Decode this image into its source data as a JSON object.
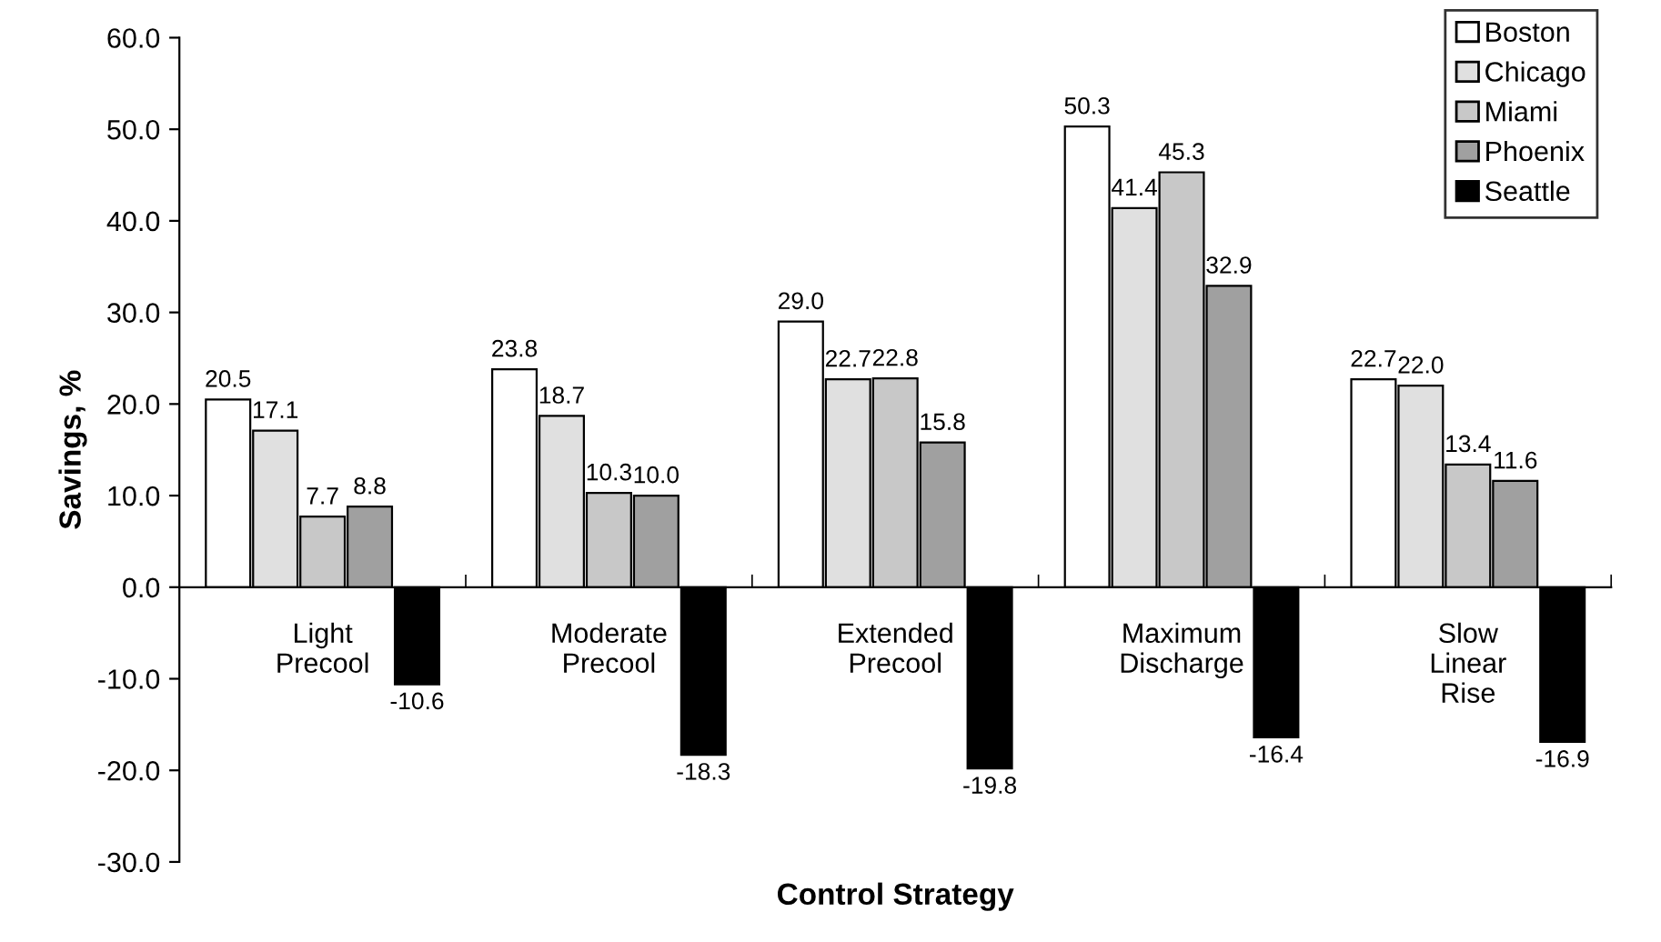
{
  "chart_data": {
    "type": "bar",
    "xlabel": "Control Strategy",
    "ylabel": "Savings, %",
    "categories": [
      "Light\nPrecool",
      "Moderate\nPrecool",
      "Extended\nPrecool",
      "Maximum\nDischarge",
      "Slow\nLinear\nRise"
    ],
    "series": [
      {
        "name": "Boston",
        "color": "#ffffff",
        "values": [
          20.5,
          23.8,
          29.0,
          50.3,
          22.7
        ],
        "value_labels": [
          "20.5",
          "23.8",
          "29.0",
          "50.3",
          "22.7"
        ]
      },
      {
        "name": "Chicago",
        "color": "#e0e0e0",
        "values": [
          17.1,
          18.7,
          22.7,
          41.4,
          22.0
        ],
        "value_labels": [
          "17.1",
          "18.7",
          "22.7",
          "41.4",
          "22.0"
        ]
      },
      {
        "name": "Miami",
        "color": "#c8c8c8",
        "values": [
          7.7,
          10.3,
          22.8,
          45.3,
          13.4
        ],
        "value_labels": [
          "7.7",
          "10.3",
          "22.8",
          "45.3",
          "13.4"
        ]
      },
      {
        "name": "Phoenix",
        "color": "#a0a0a0",
        "values": [
          8.8,
          10.0,
          15.8,
          32.9,
          11.6
        ],
        "value_labels": [
          "8.8",
          "10.0",
          "15.8",
          "32.9",
          "11.6"
        ]
      },
      {
        "name": "Seattle",
        "color": "#000000",
        "values": [
          -10.6,
          -18.3,
          -19.8,
          -16.4,
          -16.9
        ],
        "value_labels": [
          "-10.6",
          "-18.3",
          "-19.8",
          "-16.4",
          "-16.9"
        ]
      }
    ],
    "ylim": [
      -30,
      60
    ],
    "yticks": [
      {
        "value": -30,
        "label": "-30.0"
      },
      {
        "value": -20,
        "label": "-20.0"
      },
      {
        "value": -10,
        "label": "-10.0"
      },
      {
        "value": 0,
        "label": "0.0"
      },
      {
        "value": 10,
        "label": "10.0"
      },
      {
        "value": 20,
        "label": "20.0"
      },
      {
        "value": 30,
        "label": "30.0"
      },
      {
        "value": 40,
        "label": "40.0"
      },
      {
        "value": 50,
        "label": "50.0"
      },
      {
        "value": 60,
        "label": "60.0"
      }
    ],
    "legend": "top right",
    "grid": false
  }
}
